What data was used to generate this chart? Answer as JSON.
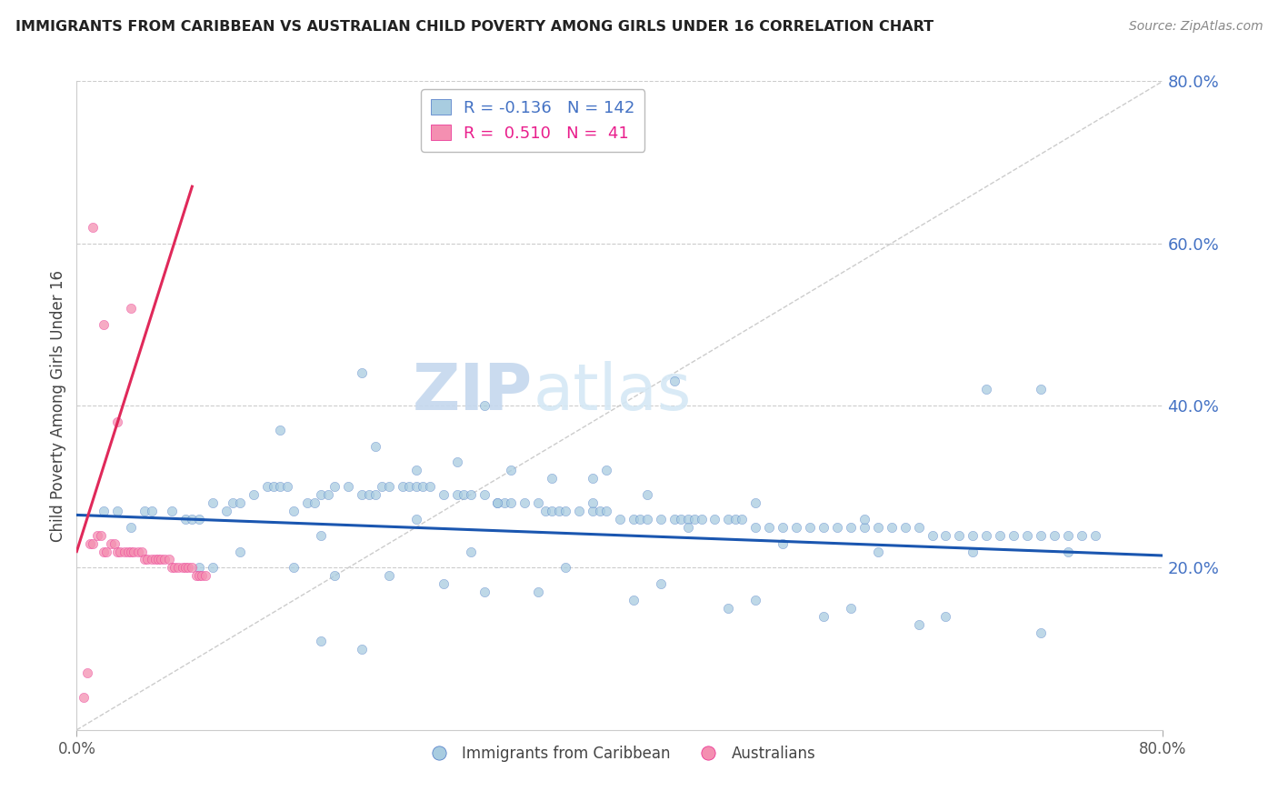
{
  "title": "IMMIGRANTS FROM CARIBBEAN VS AUSTRALIAN CHILD POVERTY AMONG GIRLS UNDER 16 CORRELATION CHART",
  "source": "Source: ZipAtlas.com",
  "ylabel": "Child Poverty Among Girls Under 16",
  "yticks_labels": [
    "20.0%",
    "40.0%",
    "60.0%",
    "80.0%"
  ],
  "ytick_vals": [
    0.2,
    0.4,
    0.6,
    0.8
  ],
  "xlim": [
    0.0,
    0.8
  ],
  "ylim": [
    0.0,
    0.8
  ],
  "color_blue": "#a8cce0",
  "color_blue_dark": "#4472c4",
  "color_pink": "#f48fb1",
  "color_pink_dark": "#e91e8c",
  "color_trend_blue": "#1a56b0",
  "color_trend_pink": "#e0295a",
  "watermark_zip": "ZIP",
  "watermark_atlas": "atlas",
  "legend_label1": "Immigrants from Caribbean",
  "legend_label2": "Australians",
  "legend_r1_val": "-0.136",
  "legend_n1_val": "142",
  "legend_r2_val": "0.510",
  "legend_n2_val": "41",
  "blue_trend_x": [
    0.0,
    0.8
  ],
  "blue_trend_y": [
    0.265,
    0.215
  ],
  "pink_trend_x": [
    0.0,
    0.085
  ],
  "pink_trend_y": [
    0.22,
    0.67
  ],
  "blue_x": [
    0.02,
    0.03,
    0.04,
    0.05,
    0.055,
    0.07,
    0.08,
    0.085,
    0.09,
    0.1,
    0.11,
    0.115,
    0.12,
    0.13,
    0.14,
    0.145,
    0.15,
    0.155,
    0.16,
    0.17,
    0.175,
    0.18,
    0.185,
    0.19,
    0.2,
    0.21,
    0.215,
    0.22,
    0.225,
    0.23,
    0.24,
    0.245,
    0.25,
    0.255,
    0.26,
    0.27,
    0.28,
    0.285,
    0.29,
    0.3,
    0.31,
    0.315,
    0.32,
    0.33,
    0.34,
    0.345,
    0.35,
    0.355,
    0.36,
    0.37,
    0.38,
    0.385,
    0.39,
    0.4,
    0.41,
    0.415,
    0.42,
    0.43,
    0.44,
    0.445,
    0.45,
    0.455,
    0.46,
    0.47,
    0.48,
    0.485,
    0.49,
    0.5,
    0.51,
    0.52,
    0.53,
    0.54,
    0.55,
    0.56,
    0.57,
    0.58,
    0.59,
    0.6,
    0.61,
    0.62,
    0.63,
    0.64,
    0.65,
    0.66,
    0.67,
    0.68,
    0.69,
    0.7,
    0.71,
    0.72,
    0.73,
    0.74,
    0.75,
    0.15,
    0.22,
    0.28,
    0.35,
    0.42,
    0.5,
    0.58,
    0.67,
    0.71,
    0.25,
    0.32,
    0.38,
    0.12,
    0.18,
    0.25,
    0.31,
    0.38,
    0.45,
    0.52,
    0.59,
    0.66,
    0.73,
    0.29,
    0.36,
    0.43,
    0.5,
    0.57,
    0.64,
    0.71,
    0.09,
    0.16,
    0.23,
    0.3,
    0.1,
    0.19,
    0.27,
    0.34,
    0.41,
    0.48,
    0.55,
    0.62,
    0.21,
    0.3,
    0.39,
    0.21,
    0.44,
    0.18
  ],
  "blue_y": [
    0.27,
    0.27,
    0.25,
    0.27,
    0.27,
    0.27,
    0.26,
    0.26,
    0.26,
    0.28,
    0.27,
    0.28,
    0.28,
    0.29,
    0.3,
    0.3,
    0.3,
    0.3,
    0.27,
    0.28,
    0.28,
    0.29,
    0.29,
    0.3,
    0.3,
    0.29,
    0.29,
    0.29,
    0.3,
    0.3,
    0.3,
    0.3,
    0.3,
    0.3,
    0.3,
    0.29,
    0.29,
    0.29,
    0.29,
    0.29,
    0.28,
    0.28,
    0.28,
    0.28,
    0.28,
    0.27,
    0.27,
    0.27,
    0.27,
    0.27,
    0.27,
    0.27,
    0.27,
    0.26,
    0.26,
    0.26,
    0.26,
    0.26,
    0.26,
    0.26,
    0.26,
    0.26,
    0.26,
    0.26,
    0.26,
    0.26,
    0.26,
    0.25,
    0.25,
    0.25,
    0.25,
    0.25,
    0.25,
    0.25,
    0.25,
    0.25,
    0.25,
    0.25,
    0.25,
    0.25,
    0.24,
    0.24,
    0.24,
    0.24,
    0.24,
    0.24,
    0.24,
    0.24,
    0.24,
    0.24,
    0.24,
    0.24,
    0.24,
    0.37,
    0.35,
    0.33,
    0.31,
    0.29,
    0.28,
    0.26,
    0.42,
    0.42,
    0.32,
    0.32,
    0.31,
    0.22,
    0.24,
    0.26,
    0.28,
    0.28,
    0.25,
    0.23,
    0.22,
    0.22,
    0.22,
    0.22,
    0.2,
    0.18,
    0.16,
    0.15,
    0.14,
    0.12,
    0.2,
    0.2,
    0.19,
    0.17,
    0.2,
    0.19,
    0.18,
    0.17,
    0.16,
    0.15,
    0.14,
    0.13,
    0.44,
    0.4,
    0.32,
    0.1,
    0.43,
    0.11
  ],
  "pink_x": [
    0.005,
    0.008,
    0.01,
    0.012,
    0.015,
    0.018,
    0.02,
    0.022,
    0.025,
    0.028,
    0.03,
    0.032,
    0.035,
    0.038,
    0.04,
    0.042,
    0.045,
    0.048,
    0.05,
    0.052,
    0.055,
    0.058,
    0.06,
    0.062,
    0.065,
    0.068,
    0.07,
    0.072,
    0.075,
    0.078,
    0.08,
    0.082,
    0.085,
    0.088,
    0.09,
    0.092,
    0.095,
    0.012,
    0.02,
    0.03,
    0.04
  ],
  "pink_y": [
    0.04,
    0.07,
    0.23,
    0.23,
    0.24,
    0.24,
    0.22,
    0.22,
    0.23,
    0.23,
    0.22,
    0.22,
    0.22,
    0.22,
    0.22,
    0.22,
    0.22,
    0.22,
    0.21,
    0.21,
    0.21,
    0.21,
    0.21,
    0.21,
    0.21,
    0.21,
    0.2,
    0.2,
    0.2,
    0.2,
    0.2,
    0.2,
    0.2,
    0.19,
    0.19,
    0.19,
    0.19,
    0.62,
    0.5,
    0.38,
    0.52
  ]
}
